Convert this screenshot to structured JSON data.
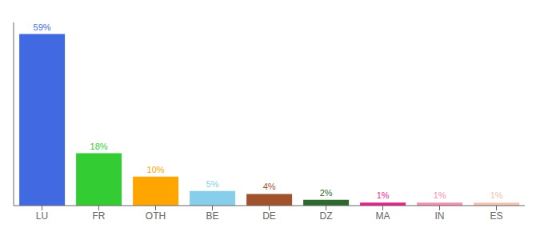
{
  "chart_data": {
    "type": "bar",
    "categories": [
      "LU",
      "FR",
      "OTH",
      "BE",
      "DE",
      "DZ",
      "MA",
      "IN",
      "ES"
    ],
    "values": [
      59,
      18,
      10,
      5,
      4,
      2,
      1,
      1,
      1
    ],
    "value_labels": [
      "59%",
      "18%",
      "10%",
      "5%",
      "4%",
      "2%",
      "1%",
      "1%",
      "1%"
    ],
    "colors": [
      "#4169e1",
      "#33cc33",
      "#ffa500",
      "#87ceeb",
      "#a0522d",
      "#2d6a2d",
      "#e91e8c",
      "#f48fb1",
      "#f4c2b0"
    ],
    "ylim": [
      0,
      63
    ],
    "data_labels": true,
    "tick_labels": "x",
    "grid": false
  }
}
